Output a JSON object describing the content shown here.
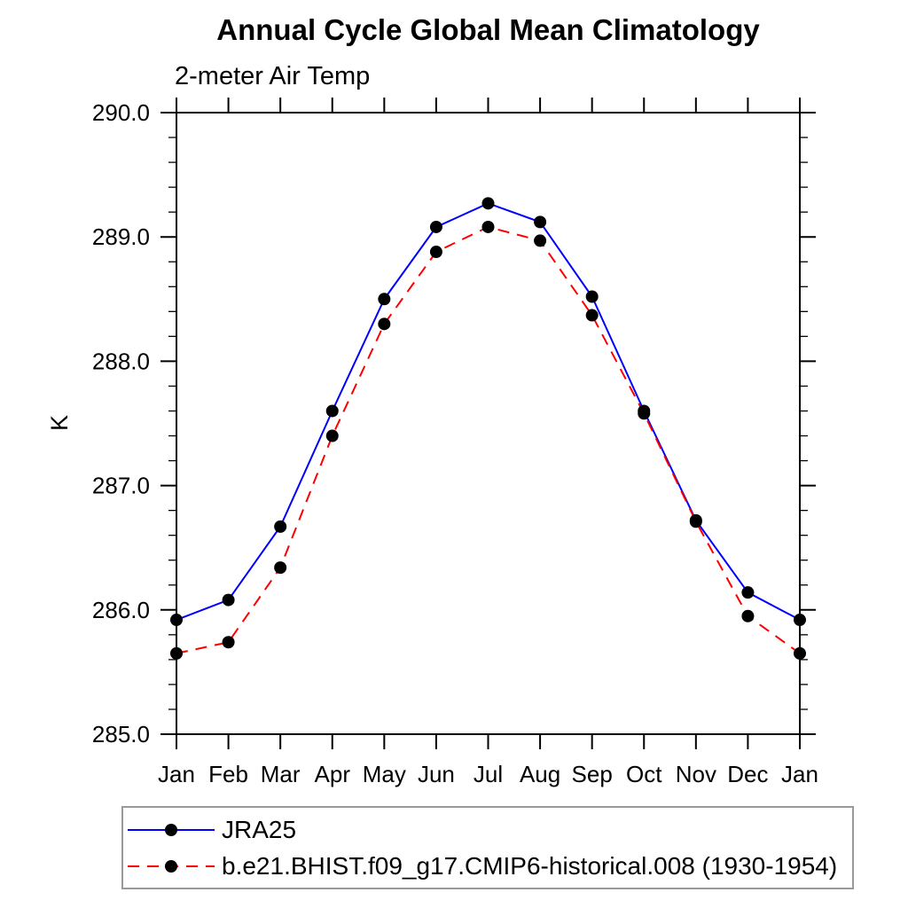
{
  "chart_data": {
    "type": "line",
    "title": "Annual Cycle Global Mean Climatology",
    "subtitle": "2-meter Air Temp",
    "ylabel": "K",
    "xlabel": "",
    "categories": [
      "Jan",
      "Feb",
      "Mar",
      "Apr",
      "May",
      "Jun",
      "Jul",
      "Aug",
      "Sep",
      "Oct",
      "Nov",
      "Dec",
      "Jan"
    ],
    "series": [
      {
        "name": "JRA25",
        "color": "#0000ff",
        "line_style": "solid",
        "marker": "filled-circle",
        "marker_color": "#000000",
        "values": [
          285.92,
          286.08,
          286.67,
          287.6,
          288.5,
          289.08,
          289.27,
          289.12,
          288.52,
          287.6,
          286.72,
          286.14,
          285.92
        ]
      },
      {
        "name": "b.e21.BHIST.f09_g17.CMIP6-historical.008 (1930-1954)",
        "color": "#ff0000",
        "line_style": "dashed",
        "marker": "filled-circle",
        "marker_color": "#000000",
        "values": [
          285.65,
          285.74,
          286.34,
          287.4,
          288.3,
          288.88,
          289.08,
          288.97,
          288.37,
          287.58,
          286.71,
          285.95,
          285.65
        ]
      }
    ],
    "ylim": [
      285.0,
      290.0
    ],
    "ytick_major_interval": 1.0,
    "ytick_minor_interval": 0.2,
    "ytick_labels": [
      "285.0",
      "286.0",
      "287.0",
      "288.0",
      "289.0",
      "290.0"
    ],
    "grid": "off",
    "legend_position": "bottom-left-box"
  },
  "colors": {
    "axis": "#000000",
    "marker": "#000000",
    "series1": "#0000ff",
    "series2": "#ff0000",
    "legend_border": "#999999"
  }
}
